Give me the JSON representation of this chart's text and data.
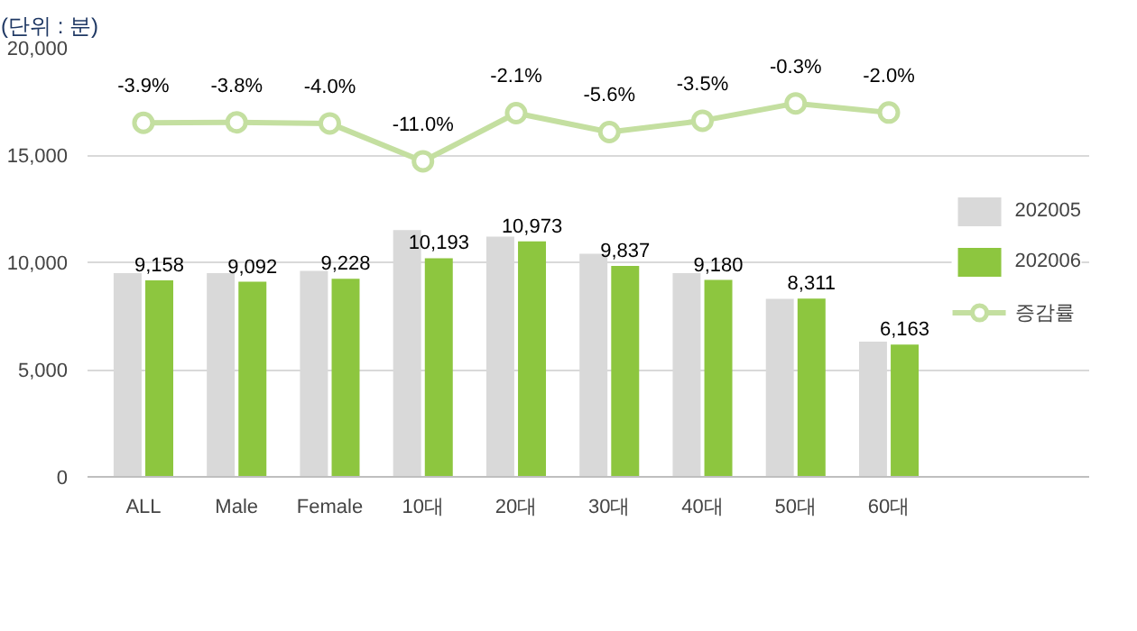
{
  "chart_data": {
    "type": "bar",
    "ylabel": "(단위 : 분)",
    "categories": [
      "ALL",
      "Male",
      "Female",
      "10대",
      "20대",
      "30대",
      "40대",
      "50대",
      "60대"
    ],
    "series": [
      {
        "name": "202005",
        "color": "#d9d9d9",
        "values": [
          9500,
          9500,
          9600,
          11500,
          11200,
          10400,
          9500,
          8300,
          6300
        ]
      },
      {
        "name": "202006",
        "color": "#8dc63f",
        "values": [
          9158,
          9092,
          9228,
          10193,
          10973,
          9837,
          9180,
          8311,
          6163
        ],
        "value_labels": [
          "9,158",
          "9,092",
          "9,228",
          "10,193",
          "10,973",
          "9,837",
          "9,180",
          "8,311",
          "6,163"
        ]
      },
      {
        "name": "증감률",
        "type": "line",
        "axis": "y2",
        "color": "#c4dfa0",
        "marker": "circle",
        "values": [
          -3.9,
          -3.8,
          -4.0,
          -11.0,
          -2.1,
          -5.6,
          -3.5,
          -0.3,
          -2.0
        ],
        "value_labels": [
          "-3.9%",
          "-3.8%",
          "-4.0%",
          "-11.0%",
          "-2.1%",
          "-5.6%",
          "-3.5%",
          "-0.3%",
          "-2.0%"
        ]
      }
    ],
    "ylim": [
      0,
      20000
    ],
    "yticks": [
      {
        "value": 0,
        "label": "0"
      },
      {
        "value": 5000,
        "label": "5,000"
      },
      {
        "value": 10000,
        "label": "10,000"
      },
      {
        "value": 15000,
        "label": "15,000"
      },
      {
        "value": 20000,
        "label": "20,000"
      }
    ],
    "tick_labels": "xy",
    "grid": "y",
    "legend": "right"
  }
}
